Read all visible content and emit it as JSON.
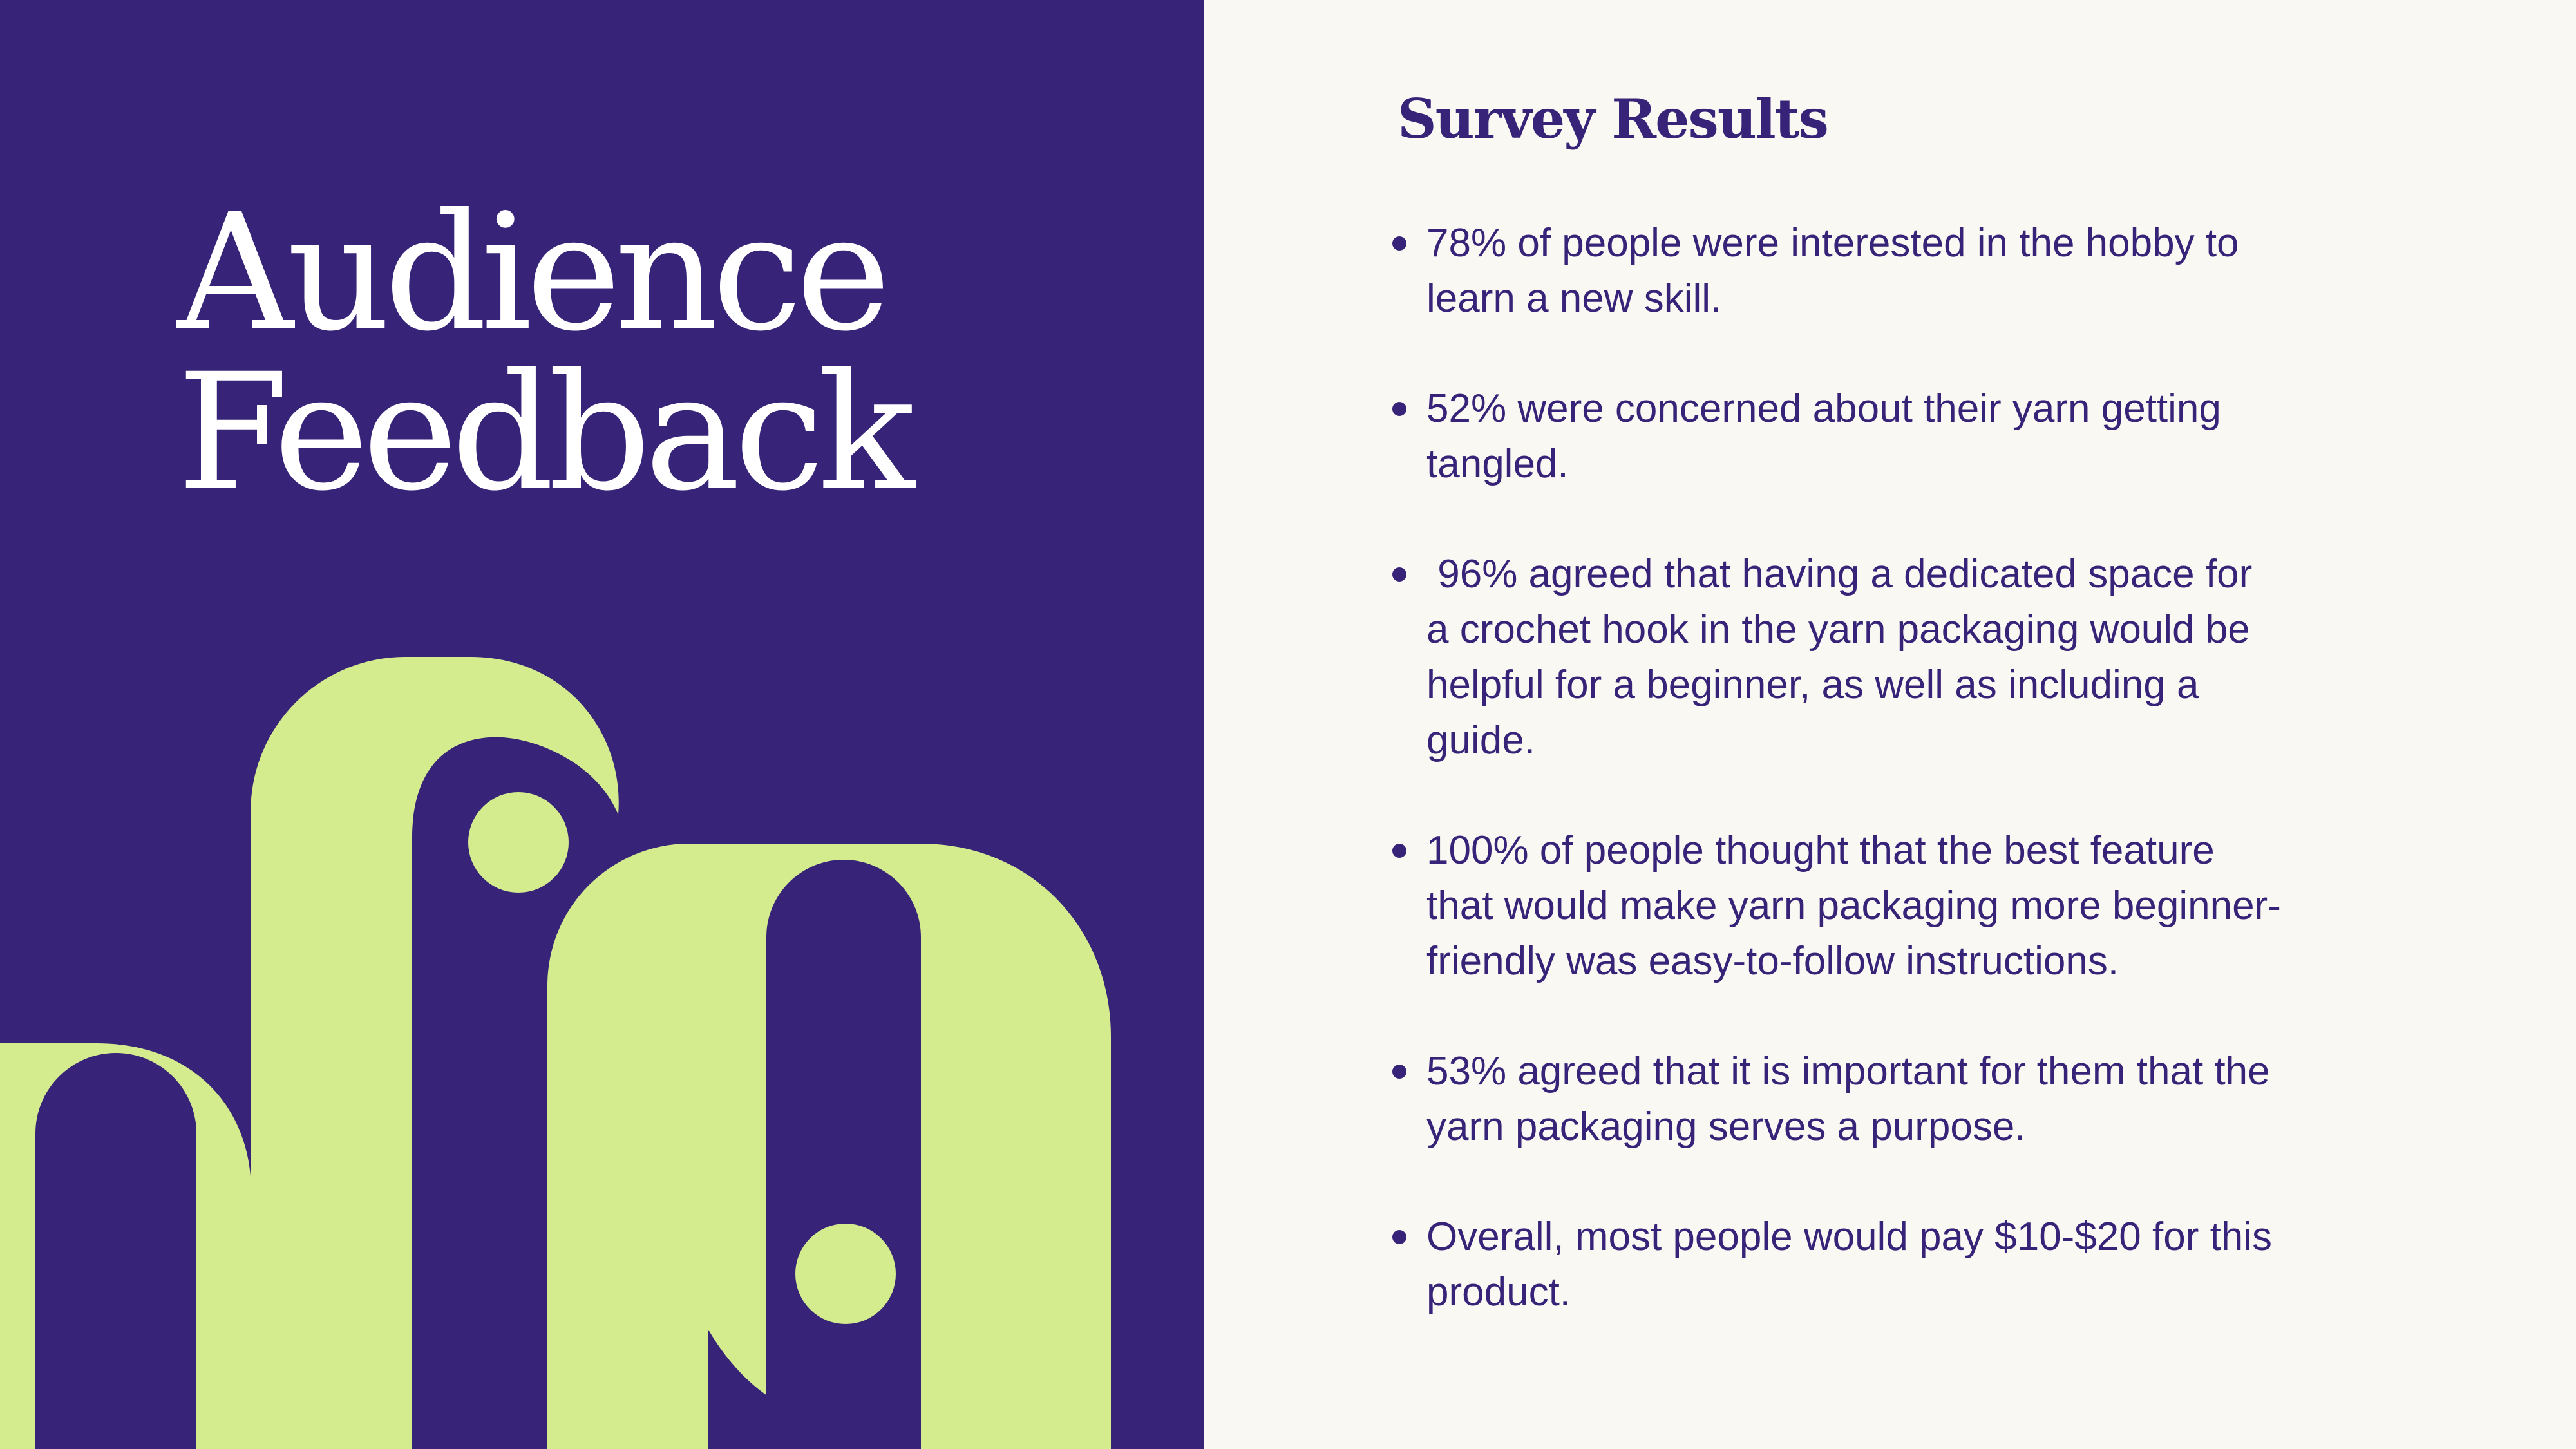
{
  "colors": {
    "left_panel_bg": "#372479",
    "right_panel_bg": "#f9f8f3",
    "accent_green": "#d4ec8e",
    "text_dark": "#372479",
    "text_light": "#ffffff"
  },
  "left": {
    "title_line1": "Audience",
    "title_line2": "Feedback"
  },
  "right": {
    "heading": "Survey Results",
    "bullets": [
      "78% of people were interested in the hobby to learn a new skill.",
      "52% were concerned about their yarn getting tangled.",
      " 96% agreed that having a dedicated space for a crochet hook in the yarn packaging would be helpful for a beginner, as well as including a guide.",
      "100% of people thought that the best feature that would make yarn packaging more beginner-friendly was easy-to-follow instructions.",
      "53% agreed that it is important for them that the yarn packaging serves a purpose.",
      "Overall, most people would pay $10-$20 for this product."
    ]
  }
}
